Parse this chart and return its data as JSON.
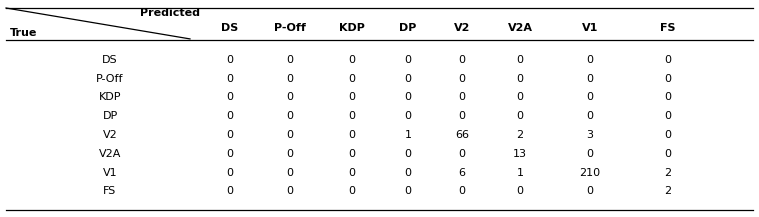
{
  "col_labels": [
    "DS",
    "P-Off",
    "KDP",
    "DP",
    "V2",
    "V2A",
    "V1",
    "FS"
  ],
  "row_labels": [
    "DS",
    "P-Off",
    "KDP",
    "DP",
    "V2",
    "V2A",
    "V1",
    "FS"
  ],
  "matrix": [
    [
      0,
      0,
      0,
      0,
      0,
      0,
      0,
      0
    ],
    [
      0,
      0,
      0,
      0,
      0,
      0,
      0,
      0
    ],
    [
      0,
      0,
      0,
      0,
      0,
      0,
      0,
      0
    ],
    [
      0,
      0,
      0,
      0,
      0,
      0,
      0,
      0
    ],
    [
      0,
      0,
      0,
      1,
      66,
      2,
      3,
      0
    ],
    [
      0,
      0,
      0,
      0,
      0,
      13,
      0,
      0
    ],
    [
      0,
      0,
      0,
      0,
      6,
      1,
      210,
      2
    ],
    [
      0,
      0,
      0,
      0,
      0,
      0,
      0,
      2
    ]
  ],
  "predicted_label": "Predicted",
  "true_label": "True",
  "figsize": [
    7.59,
    2.17
  ],
  "dpi": 100,
  "font_family": "DejaVu Sans",
  "text_color": "#000000",
  "fontsize": 8
}
